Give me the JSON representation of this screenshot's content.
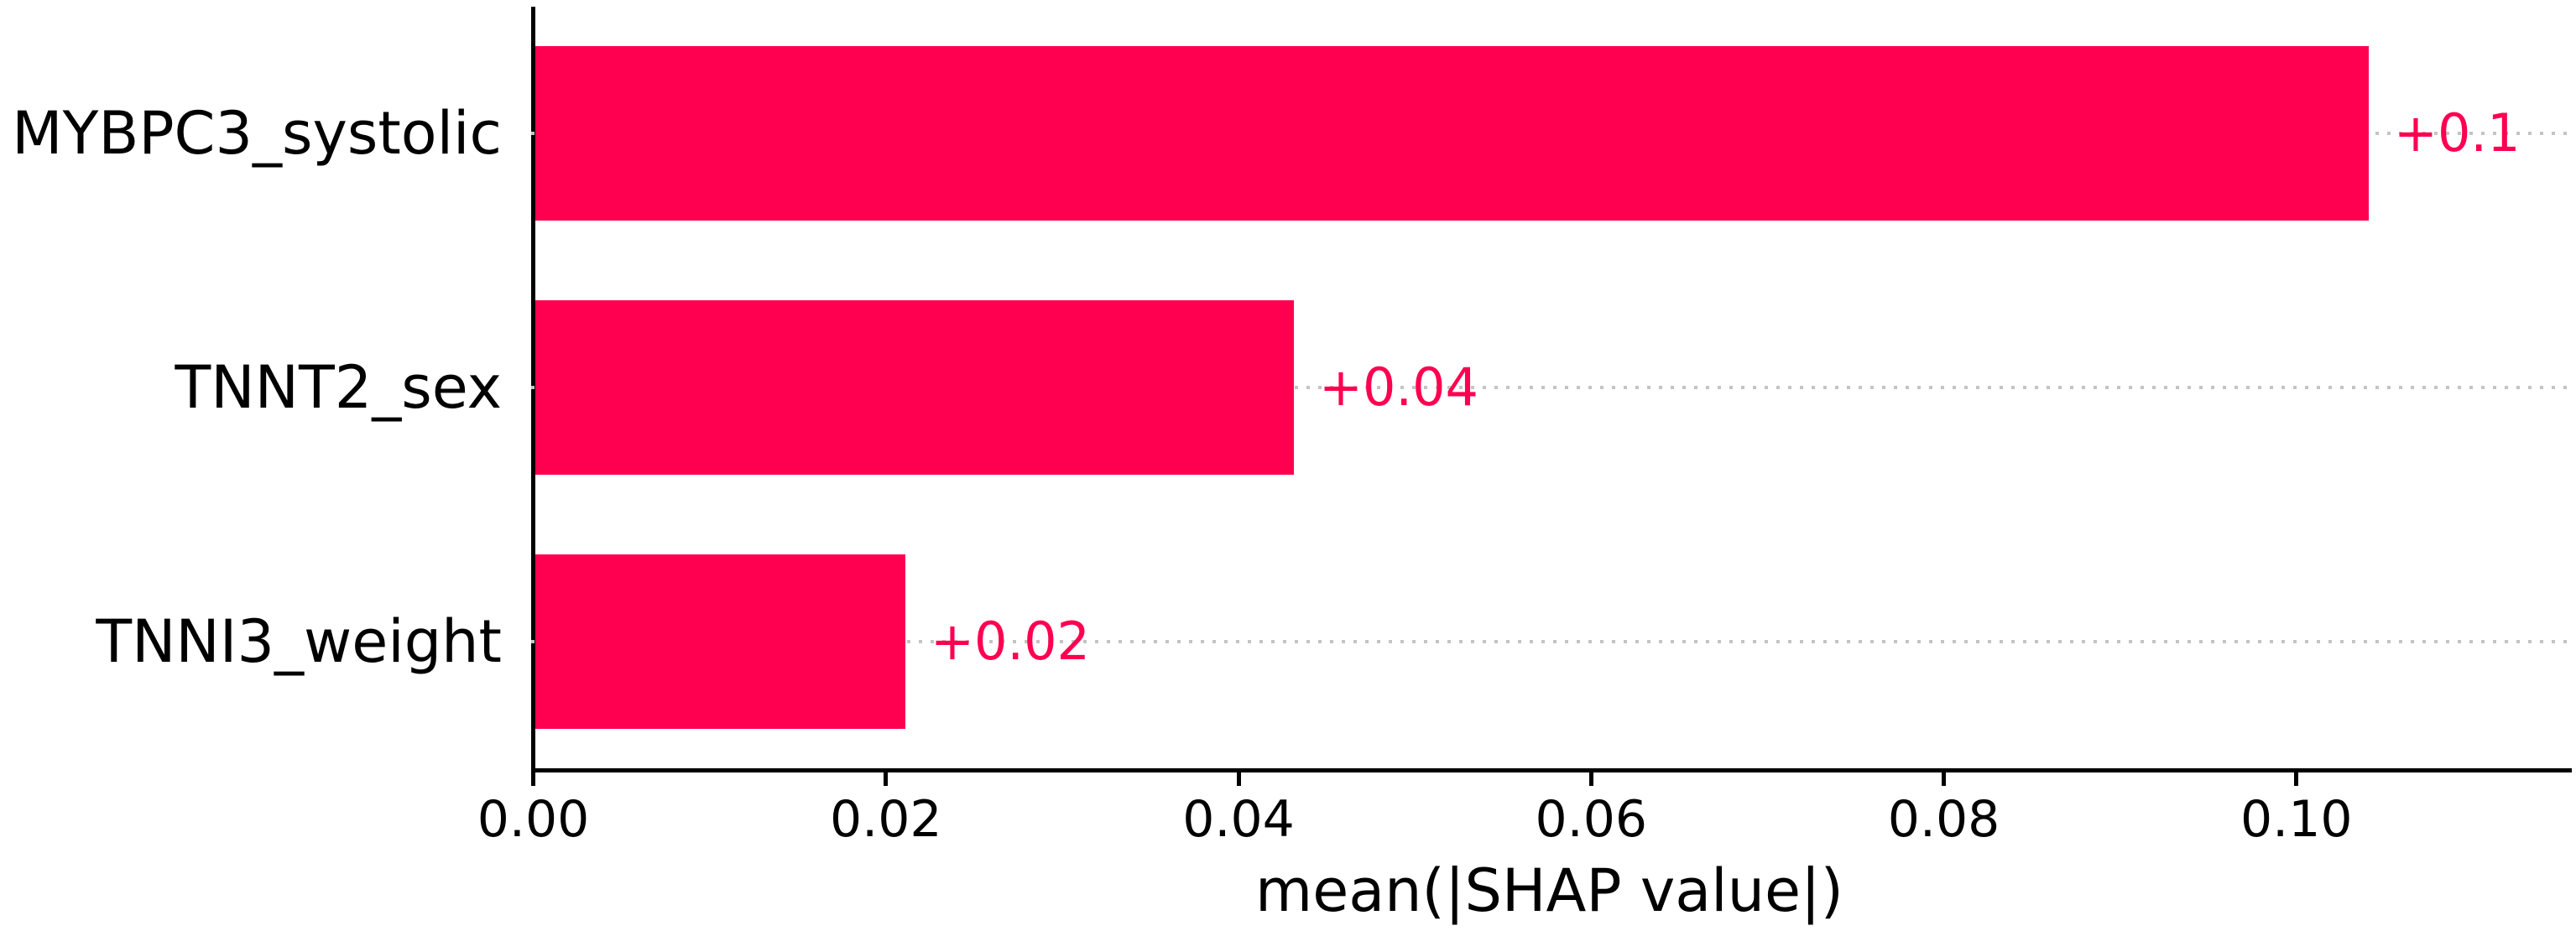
{
  "chart_data": {
    "type": "bar",
    "orientation": "horizontal",
    "title": "",
    "xlabel": "mean(|SHAP value|)",
    "ylabel": "",
    "categories": [
      "MYBPC3_systolic",
      "TNNT2_sex",
      "TNNI3_weight"
    ],
    "values": [
      0.104,
      0.043,
      0.021
    ],
    "bar_labels": [
      "+0.1",
      "+0.04",
      "+0.02"
    ],
    "x_ticks": [
      {
        "value": 0.0,
        "label": "0.00"
      },
      {
        "value": 0.02,
        "label": "0.02"
      },
      {
        "value": 0.04,
        "label": "0.04"
      },
      {
        "value": 0.06,
        "label": "0.06"
      },
      {
        "value": 0.08,
        "label": "0.08"
      },
      {
        "value": 0.1,
        "label": "0.10"
      }
    ],
    "xlim": [
      0,
      0.1155
    ],
    "grid": {
      "style": "dotted",
      "type": "horizontal-guide-per-bar",
      "extends_to_right_edge": true
    },
    "legend": null,
    "colors": {
      "bar": "#ff0051",
      "bar_label": "#ff0051",
      "guide_dots": "#c4c4c4",
      "axis": "#000000",
      "text": "#000000",
      "background": "#ffffff"
    }
  }
}
